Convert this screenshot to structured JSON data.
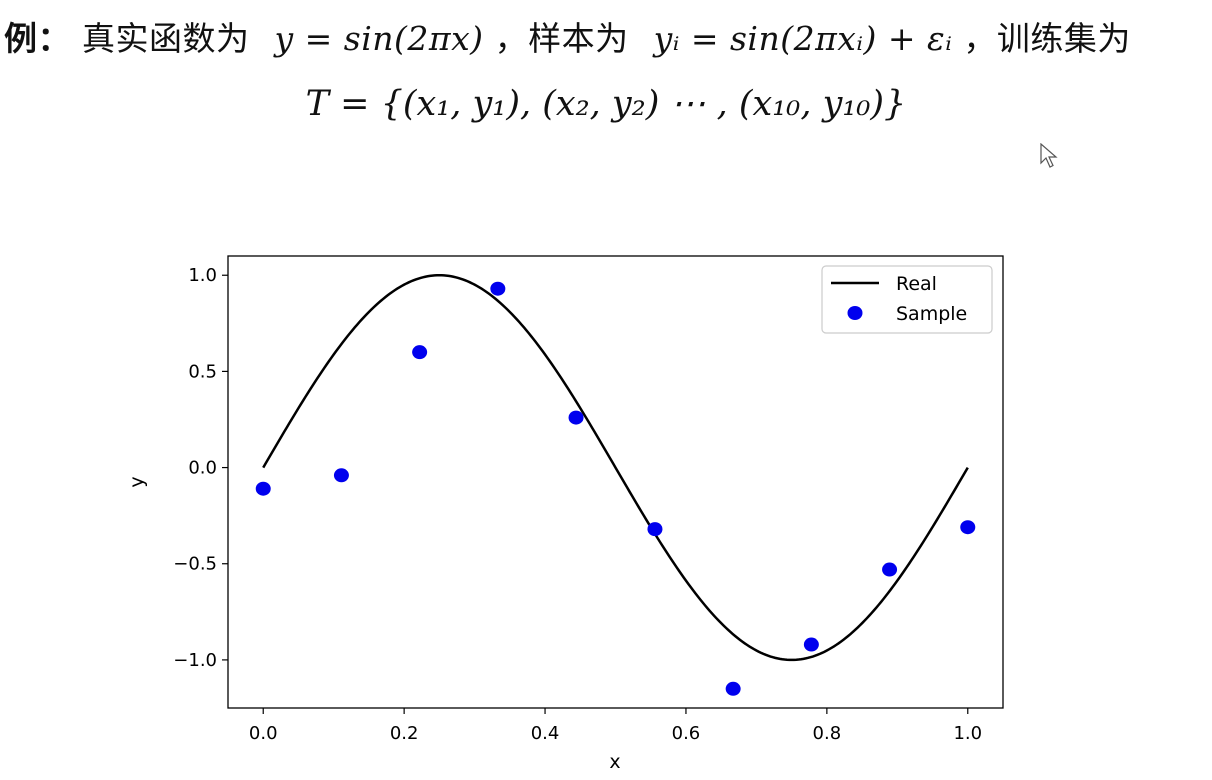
{
  "header": {
    "example_label": "例：",
    "seg1": "真实函数为",
    "func": "y = sin(2πx)",
    "seg2": "，样本为",
    "sample_eq": "yᵢ = sin(2πxᵢ) + εᵢ",
    "seg3": "，训练集为",
    "training_set": "T = {(x₁, y₁), (x₂, y₂) ⋯ , (x₁₀, y₁₀)}"
  },
  "chart_data": {
    "type": "line",
    "xlabel": "x",
    "ylabel": "y",
    "xlim": [
      -0.05,
      1.05
    ],
    "ylim": [
      -1.25,
      1.1
    ],
    "x_ticks": [
      "0.0",
      "0.2",
      "0.4",
      "0.6",
      "0.8",
      "1.0"
    ],
    "y_ticks": [
      "1.0",
      "0.5",
      "0.0",
      "−0.5",
      "−1.0"
    ],
    "grid": false,
    "legend_position": "top-right",
    "series": [
      {
        "name": "Real",
        "kind": "line",
        "color": "#000000",
        "function": "sin(2*pi*x)",
        "x_range": [
          0,
          1
        ]
      },
      {
        "name": "Sample",
        "kind": "scatter",
        "color": "#0000ee",
        "x": [
          0.0,
          0.111,
          0.222,
          0.333,
          0.444,
          0.556,
          0.667,
          0.778,
          0.889,
          1.0
        ],
        "y": [
          -0.11,
          -0.04,
          0.6,
          0.93,
          0.26,
          -0.32,
          -1.15,
          -0.92,
          -0.53,
          -0.31
        ]
      }
    ]
  }
}
